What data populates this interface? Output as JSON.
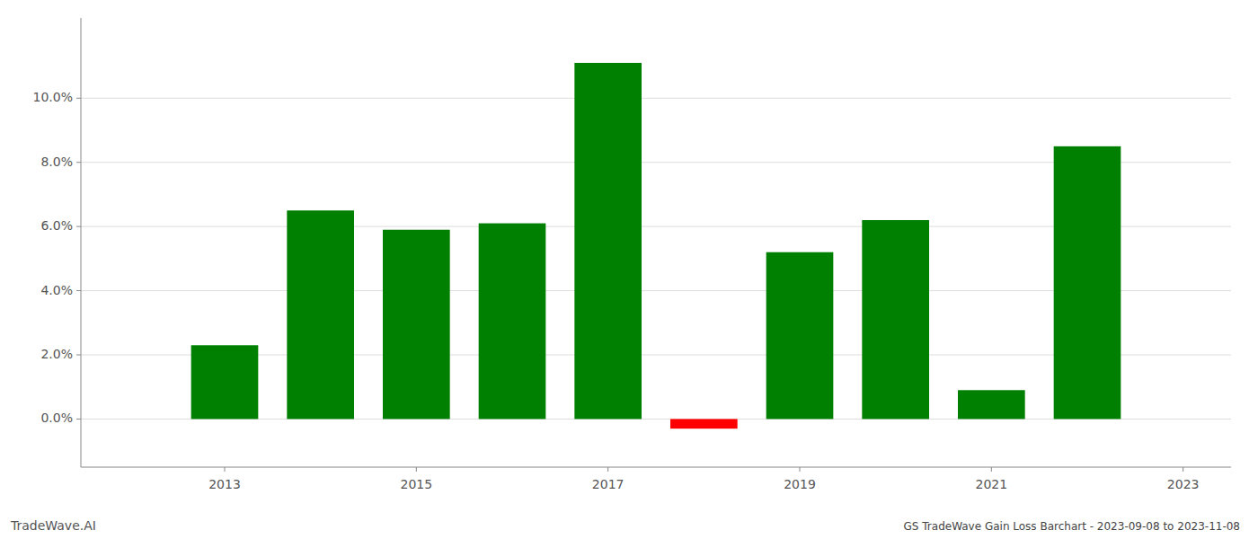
{
  "chart_data": {
    "type": "bar",
    "title": "GS TradeWave Gain Loss Barchart - 2023-09-08 to 2023-11-08",
    "annotations": [
      "TradeWave.AI"
    ],
    "x": [
      2013,
      2014,
      2015,
      2016,
      2017,
      2018,
      2019,
      2020,
      2021,
      2022
    ],
    "values": [
      0.023,
      0.065,
      0.059,
      0.061,
      0.111,
      -0.003,
      0.052,
      0.062,
      0.009,
      0.085
    ],
    "colors": [
      "#008000",
      "#008000",
      "#008000",
      "#008000",
      "#008000",
      "#ff0000",
      "#008000",
      "#008000",
      "#008000",
      "#008000"
    ],
    "ylim": [
      -0.015,
      0.125
    ],
    "yticks": [
      {
        "value": 0.0,
        "label": "0.0%"
      },
      {
        "value": 0.02,
        "label": "2.0%"
      },
      {
        "value": 0.04,
        "label": "4.0%"
      },
      {
        "value": 0.06,
        "label": "6.0%"
      },
      {
        "value": 0.08,
        "label": "8.0%"
      },
      {
        "value": 0.1,
        "label": "10.0%"
      }
    ],
    "xlim": [
      2011.5,
      2023.5
    ],
    "xticks": [
      2013,
      2015,
      2017,
      2019,
      2021,
      2023
    ],
    "grid": true
  }
}
